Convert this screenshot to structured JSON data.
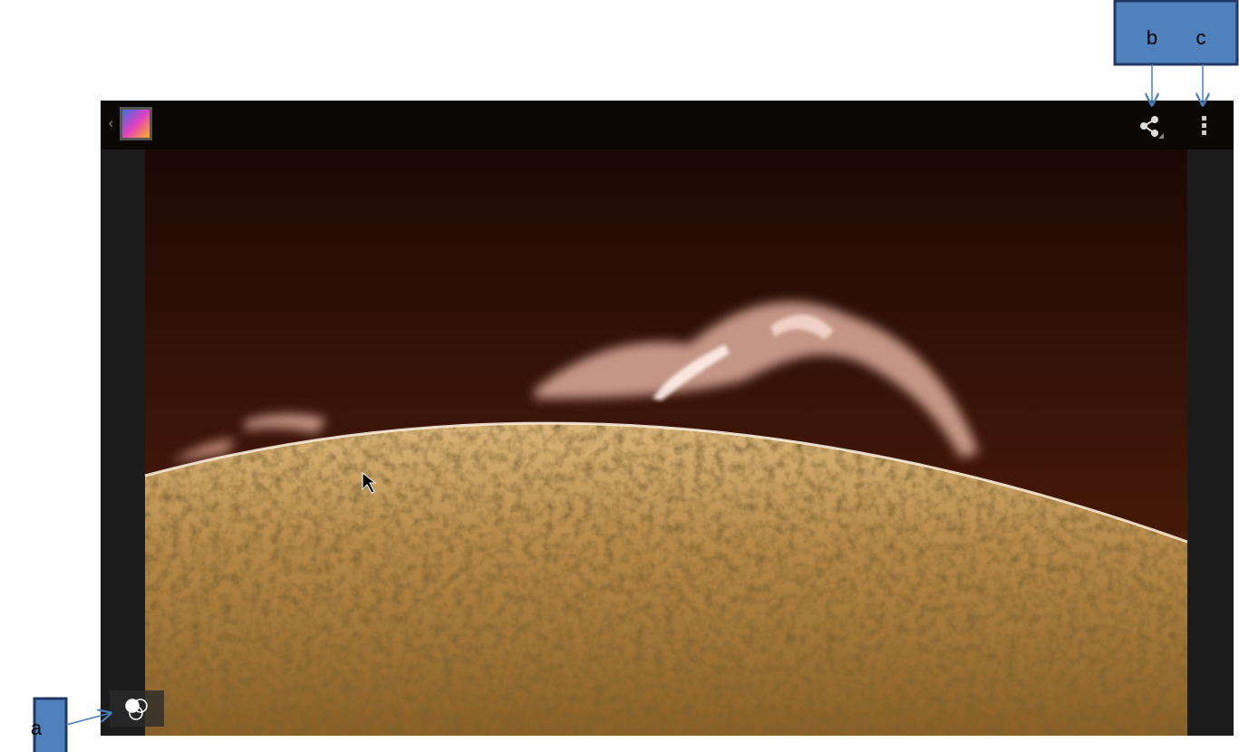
{
  "callouts": [
    {
      "label": "a"
    },
    {
      "label": "b"
    },
    {
      "label": "c"
    }
  ]
}
